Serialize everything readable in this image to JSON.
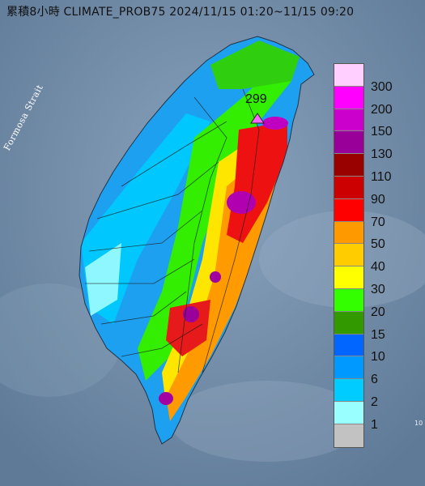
{
  "title": "累積8小時 CLIMATE_PROB75 2024/11/15 01:20~11/15 09:20",
  "strait_label": "Formosa Strait",
  "max_value_label": "299",
  "legend": {
    "tick_labels": [
      "300",
      "200",
      "150",
      "130",
      "110",
      "90",
      "70",
      "50",
      "40",
      "30",
      "20",
      "15",
      "10",
      "6",
      "2",
      "1"
    ],
    "colors": [
      "#ffcfff",
      "#ff00ff",
      "#cc00cc",
      "#990099",
      "#990000",
      "#cc0000",
      "#ff0000",
      "#ff9900",
      "#ffcc00",
      "#ffff00",
      "#33ff00",
      "#339900",
      "#0066ff",
      "#0099ff",
      "#00ccff",
      "#99ffff",
      "#c2c2c2"
    ]
  },
  "sea_color": "#6f8aa6",
  "edge_marker": "10"
}
